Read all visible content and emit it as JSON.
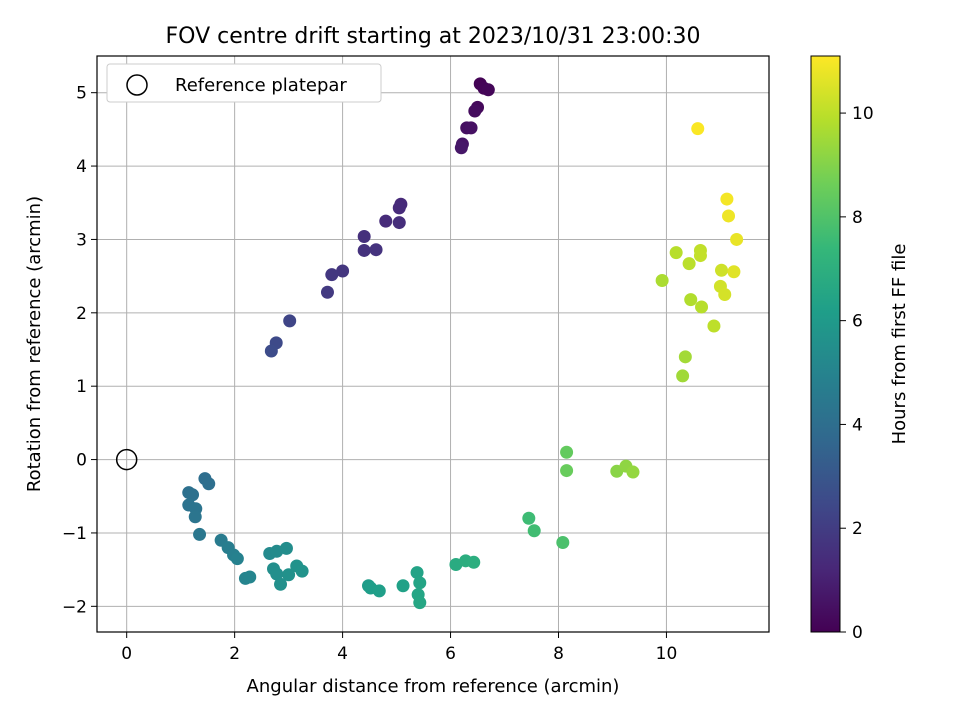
{
  "chart_data": {
    "type": "scatter",
    "title": "FOV centre drift starting at 2023/10/31 23:00:30",
    "xlabel": "Angular distance from reference (arcmin)",
    "ylabel": "Rotation from reference (arcmin)",
    "xlim": [
      -0.55,
      11.9
    ],
    "ylim": [
      -2.35,
      5.5
    ],
    "xticks": [
      "0",
      "2",
      "4",
      "6",
      "8",
      "10"
    ],
    "yticks": [
      "−2",
      "−1",
      "0",
      "1",
      "2",
      "3",
      "4",
      "5"
    ],
    "grid": true,
    "legend": {
      "position": "top-left",
      "entries": [
        "Reference platepar"
      ]
    },
    "reference_point": {
      "x": 0,
      "y": 0
    },
    "colorbar": {
      "label": "Hours from first FF file",
      "range": [
        0,
        11.1
      ],
      "ticks": [
        "0",
        "2",
        "4",
        "6",
        "8",
        "10"
      ],
      "colormap": [
        "#440154",
        "#482878",
        "#3e4989",
        "#31688e",
        "#26828e",
        "#1f9e89",
        "#35b779",
        "#6ece58",
        "#b5de2b",
        "#fde725"
      ]
    },
    "points": [
      {
        "x": 6.55,
        "y": 5.12,
        "h": 0.05
      },
      {
        "x": 6.62,
        "y": 5.06,
        "h": 0.1
      },
      {
        "x": 6.7,
        "y": 5.04,
        "h": 0.15
      },
      {
        "x": 6.5,
        "y": 4.8,
        "h": 0.25
      },
      {
        "x": 6.45,
        "y": 4.75,
        "h": 0.35
      },
      {
        "x": 6.3,
        "y": 4.52,
        "h": 0.45
      },
      {
        "x": 6.38,
        "y": 4.52,
        "h": 0.5
      },
      {
        "x": 6.22,
        "y": 4.3,
        "h": 0.6
      },
      {
        "x": 6.2,
        "y": 4.25,
        "h": 0.7
      },
      {
        "x": 5.08,
        "y": 3.48,
        "h": 1.3
      },
      {
        "x": 5.05,
        "y": 3.43,
        "h": 1.35
      },
      {
        "x": 4.8,
        "y": 3.25,
        "h": 1.4
      },
      {
        "x": 5.05,
        "y": 3.23,
        "h": 1.45
      },
      {
        "x": 4.4,
        "y": 3.04,
        "h": 1.55
      },
      {
        "x": 4.4,
        "y": 2.85,
        "h": 1.6
      },
      {
        "x": 4.62,
        "y": 2.86,
        "h": 1.65
      },
      {
        "x": 4.0,
        "y": 2.57,
        "h": 1.75
      },
      {
        "x": 3.8,
        "y": 2.52,
        "h": 1.8
      },
      {
        "x": 3.72,
        "y": 2.28,
        "h": 1.9
      },
      {
        "x": 3.02,
        "y": 1.89,
        "h": 2.3
      },
      {
        "x": 2.77,
        "y": 1.59,
        "h": 2.5
      },
      {
        "x": 2.68,
        "y": 1.48,
        "h": 2.6
      },
      {
        "x": 1.45,
        "y": -0.26,
        "h": 4.0
      },
      {
        "x": 1.52,
        "y": -0.33,
        "h": 4.05
      },
      {
        "x": 1.15,
        "y": -0.45,
        "h": 4.1
      },
      {
        "x": 1.22,
        "y": -0.48,
        "h": 4.15
      },
      {
        "x": 1.15,
        "y": -0.62,
        "h": 4.2
      },
      {
        "x": 1.28,
        "y": -0.67,
        "h": 4.25
      },
      {
        "x": 1.27,
        "y": -0.78,
        "h": 4.3
      },
      {
        "x": 1.35,
        "y": -1.02,
        "h": 4.4
      },
      {
        "x": 1.75,
        "y": -1.1,
        "h": 4.6
      },
      {
        "x": 1.88,
        "y": -1.2,
        "h": 4.7
      },
      {
        "x": 1.98,
        "y": -1.3,
        "h": 4.8
      },
      {
        "x": 2.05,
        "y": -1.35,
        "h": 4.9
      },
      {
        "x": 2.2,
        "y": -1.62,
        "h": 5.0
      },
      {
        "x": 2.28,
        "y": -1.6,
        "h": 5.05
      },
      {
        "x": 2.65,
        "y": -1.28,
        "h": 5.3
      },
      {
        "x": 2.78,
        "y": -1.25,
        "h": 5.35
      },
      {
        "x": 2.96,
        "y": -1.21,
        "h": 5.4
      },
      {
        "x": 2.72,
        "y": -1.49,
        "h": 5.45
      },
      {
        "x": 2.78,
        "y": -1.56,
        "h": 5.5
      },
      {
        "x": 2.85,
        "y": -1.7,
        "h": 5.55
      },
      {
        "x": 3.0,
        "y": -1.57,
        "h": 5.6
      },
      {
        "x": 3.15,
        "y": -1.45,
        "h": 5.65
      },
      {
        "x": 3.25,
        "y": -1.52,
        "h": 5.7
      },
      {
        "x": 4.48,
        "y": -1.72,
        "h": 6.1
      },
      {
        "x": 4.52,
        "y": -1.75,
        "h": 6.15
      },
      {
        "x": 4.68,
        "y": -1.79,
        "h": 6.2
      },
      {
        "x": 5.12,
        "y": -1.72,
        "h": 6.3
      },
      {
        "x": 5.38,
        "y": -1.54,
        "h": 6.4
      },
      {
        "x": 5.43,
        "y": -1.68,
        "h": 6.45
      },
      {
        "x": 5.4,
        "y": -1.84,
        "h": 6.5
      },
      {
        "x": 5.43,
        "y": -1.95,
        "h": 6.55
      },
      {
        "x": 6.1,
        "y": -1.43,
        "h": 6.8
      },
      {
        "x": 6.28,
        "y": -1.38,
        "h": 6.9
      },
      {
        "x": 6.43,
        "y": -1.4,
        "h": 6.95
      },
      {
        "x": 7.45,
        "y": -0.8,
        "h": 7.6
      },
      {
        "x": 7.55,
        "y": -0.97,
        "h": 7.65
      },
      {
        "x": 8.08,
        "y": -1.13,
        "h": 7.9
      },
      {
        "x": 8.15,
        "y": 0.1,
        "h": 8.4
      },
      {
        "x": 8.15,
        "y": -0.15,
        "h": 8.5
      },
      {
        "x": 9.08,
        "y": -0.16,
        "h": 9.1
      },
      {
        "x": 9.25,
        "y": -0.09,
        "h": 9.2
      },
      {
        "x": 9.38,
        "y": -0.17,
        "h": 9.3
      },
      {
        "x": 10.3,
        "y": 1.14,
        "h": 9.5
      },
      {
        "x": 10.35,
        "y": 1.4,
        "h": 9.55
      },
      {
        "x": 9.92,
        "y": 2.44,
        "h": 9.7
      },
      {
        "x": 10.45,
        "y": 2.18,
        "h": 9.8
      },
      {
        "x": 10.65,
        "y": 2.08,
        "h": 9.9
      },
      {
        "x": 10.88,
        "y": 1.82,
        "h": 10.0
      },
      {
        "x": 10.18,
        "y": 2.82,
        "h": 9.9
      },
      {
        "x": 10.42,
        "y": 2.67,
        "h": 9.95
      },
      {
        "x": 10.63,
        "y": 2.85,
        "h": 10.05
      },
      {
        "x": 10.63,
        "y": 2.78,
        "h": 10.1
      },
      {
        "x": 11.02,
        "y": 2.58,
        "h": 10.3
      },
      {
        "x": 11.0,
        "y": 2.36,
        "h": 10.35
      },
      {
        "x": 11.08,
        "y": 2.25,
        "h": 10.4
      },
      {
        "x": 11.25,
        "y": 2.56,
        "h": 10.6
      },
      {
        "x": 11.3,
        "y": 3.0,
        "h": 10.75
      },
      {
        "x": 11.15,
        "y": 3.32,
        "h": 10.85
      },
      {
        "x": 11.12,
        "y": 3.55,
        "h": 10.95
      },
      {
        "x": 10.58,
        "y": 4.51,
        "h": 11.05
      }
    ]
  }
}
